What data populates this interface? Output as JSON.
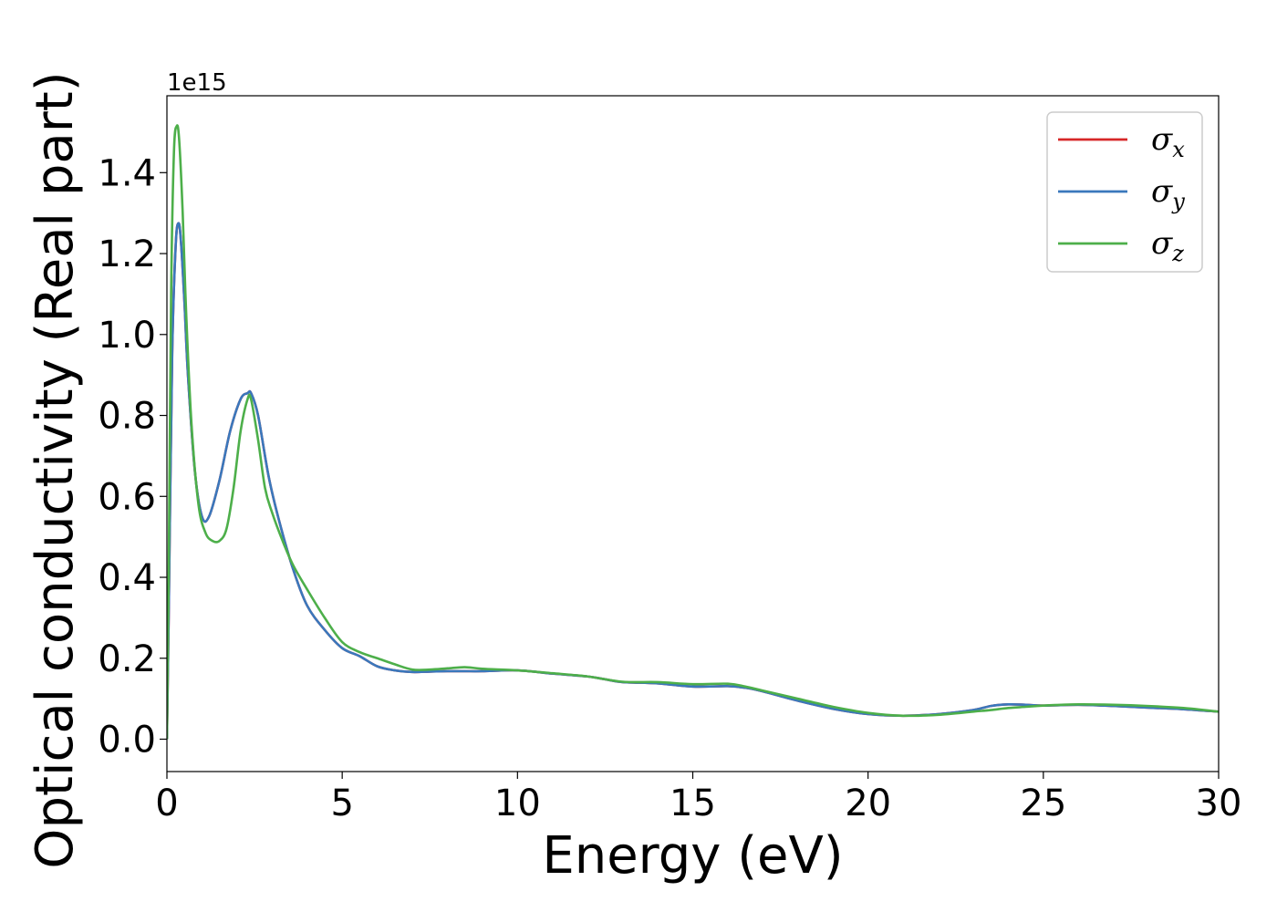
{
  "chart_data": {
    "type": "line",
    "title": "",
    "xlabel": "Energy (eV)",
    "ylabel": "Optical conductivity (Real part)",
    "y_offset_label": "1e15",
    "xlim": [
      0,
      30
    ],
    "ylim": [
      -0.08,
      1.59
    ],
    "xticks": [
      0,
      5,
      10,
      15,
      20,
      25,
      30
    ],
    "yticks": [
      0.0,
      0.2,
      0.4,
      0.6,
      0.8,
      1.0,
      1.2,
      1.4
    ],
    "xtick_labels": [
      "0",
      "5",
      "10",
      "15",
      "20",
      "25",
      "30"
    ],
    "ytick_labels": [
      "0.0",
      "0.2",
      "0.4",
      "0.6",
      "0.8",
      "1.0",
      "1.2",
      "1.4"
    ],
    "grid": false,
    "legend_position": "top-right",
    "series": [
      {
        "name": "σx",
        "sym": "σ",
        "sub": "x",
        "color": "#d62728",
        "x": [
          0,
          0.05,
          0.15,
          0.25,
          0.33,
          0.4,
          0.5,
          0.6,
          0.8,
          1.0,
          1.2,
          1.5,
          1.8,
          2.1,
          2.3,
          2.4,
          2.6,
          2.9,
          3.2,
          3.6,
          4.0,
          4.5,
          5.0,
          5.5,
          6.0,
          6.5,
          7.0,
          7.5,
          8.0,
          8.5,
          9.0,
          10.0,
          11.0,
          12.0,
          12.5,
          13.0,
          14.0,
          15.0,
          16.0,
          16.5,
          17.0,
          18.0,
          19.0,
          20.0,
          21.0,
          22.0,
          23.0,
          23.5,
          24.0,
          24.5,
          25.0,
          26.0,
          27.0,
          28.0,
          29.0,
          30.0
        ],
        "y": [
          0.0,
          0.3,
          0.95,
          1.22,
          1.275,
          1.23,
          1.08,
          0.9,
          0.66,
          0.55,
          0.55,
          0.64,
          0.76,
          0.84,
          0.855,
          0.855,
          0.8,
          0.65,
          0.54,
          0.42,
          0.33,
          0.27,
          0.225,
          0.205,
          0.18,
          0.17,
          0.166,
          0.167,
          0.168,
          0.168,
          0.168,
          0.17,
          0.162,
          0.155,
          0.148,
          0.141,
          0.138,
          0.13,
          0.131,
          0.127,
          0.118,
          0.095,
          0.075,
          0.062,
          0.058,
          0.062,
          0.072,
          0.082,
          0.086,
          0.085,
          0.083,
          0.085,
          0.082,
          0.078,
          0.074,
          0.068
        ]
      },
      {
        "name": "σy",
        "sym": "σ",
        "sub": "y",
        "color": "#3a78bc",
        "x": [
          0,
          0.05,
          0.15,
          0.25,
          0.33,
          0.4,
          0.5,
          0.6,
          0.8,
          1.0,
          1.2,
          1.5,
          1.8,
          2.1,
          2.3,
          2.4,
          2.6,
          2.9,
          3.2,
          3.6,
          4.0,
          4.5,
          5.0,
          5.5,
          6.0,
          6.5,
          7.0,
          7.5,
          8.0,
          8.5,
          9.0,
          10.0,
          11.0,
          12.0,
          12.5,
          13.0,
          14.0,
          15.0,
          16.0,
          16.5,
          17.0,
          18.0,
          19.0,
          20.0,
          21.0,
          22.0,
          23.0,
          23.5,
          24.0,
          24.5,
          25.0,
          26.0,
          27.0,
          28.0,
          29.0,
          30.0
        ],
        "y": [
          0.0,
          0.3,
          0.95,
          1.22,
          1.275,
          1.23,
          1.08,
          0.9,
          0.66,
          0.55,
          0.55,
          0.64,
          0.76,
          0.84,
          0.855,
          0.855,
          0.8,
          0.65,
          0.54,
          0.42,
          0.33,
          0.27,
          0.225,
          0.205,
          0.18,
          0.17,
          0.166,
          0.167,
          0.168,
          0.168,
          0.168,
          0.17,
          0.162,
          0.155,
          0.148,
          0.141,
          0.138,
          0.13,
          0.131,
          0.127,
          0.118,
          0.095,
          0.075,
          0.062,
          0.058,
          0.062,
          0.072,
          0.082,
          0.086,
          0.085,
          0.083,
          0.085,
          0.082,
          0.078,
          0.074,
          0.068
        ]
      },
      {
        "name": "σz",
        "sym": "σ",
        "sub": "z",
        "color": "#4daf4a",
        "x": [
          0,
          0.05,
          0.12,
          0.2,
          0.28,
          0.35,
          0.45,
          0.55,
          0.7,
          0.9,
          1.1,
          1.3,
          1.5,
          1.7,
          1.9,
          2.1,
          2.3,
          2.4,
          2.6,
          2.8,
          3.0,
          3.3,
          3.6,
          4.0,
          4.5,
          5.0,
          5.5,
          6.0,
          6.5,
          7.0,
          7.5,
          8.0,
          8.5,
          9.0,
          10.0,
          11.0,
          12.0,
          13.0,
          14.0,
          15.0,
          16.0,
          16.5,
          17.0,
          18.0,
          19.0,
          20.0,
          21.0,
          22.0,
          23.0,
          23.5,
          24.0,
          24.5,
          25.0,
          26.0,
          27.0,
          28.0,
          29.0,
          30.0
        ],
        "y": [
          0.0,
          0.4,
          1.1,
          1.45,
          1.515,
          1.48,
          1.3,
          1.05,
          0.78,
          0.58,
          0.51,
          0.49,
          0.49,
          0.52,
          0.62,
          0.76,
          0.84,
          0.84,
          0.74,
          0.62,
          0.56,
          0.49,
          0.43,
          0.37,
          0.3,
          0.24,
          0.215,
          0.2,
          0.185,
          0.172,
          0.172,
          0.175,
          0.178,
          0.174,
          0.17,
          0.163,
          0.155,
          0.142,
          0.141,
          0.136,
          0.137,
          0.13,
          0.12,
          0.1,
          0.08,
          0.065,
          0.058,
          0.06,
          0.068,
          0.072,
          0.077,
          0.08,
          0.083,
          0.086,
          0.085,
          0.082,
          0.077,
          0.068
        ]
      }
    ]
  }
}
